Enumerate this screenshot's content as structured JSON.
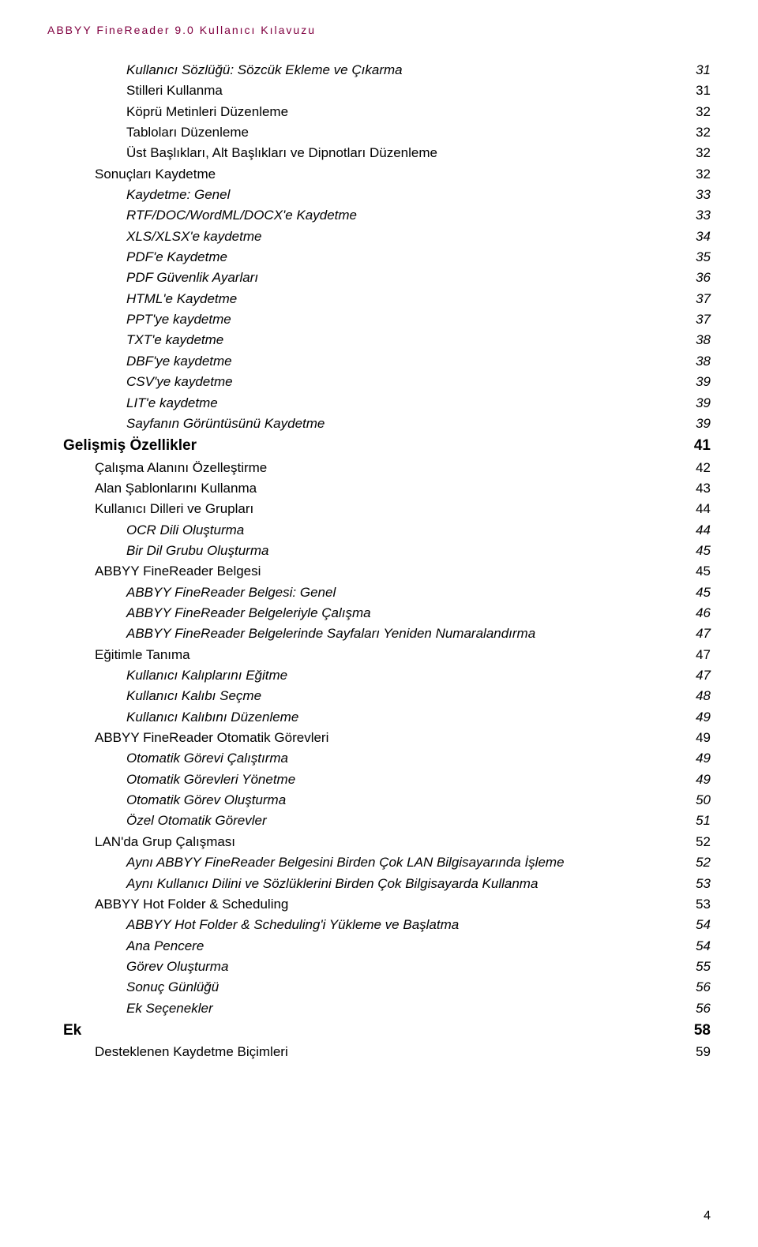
{
  "header_title": "ABBYY FineReader 9.0 Kullanıcı Kılavuzu",
  "header_color": "#800040",
  "page_number": "4",
  "text_color": "#000000",
  "background_color": "#ffffff",
  "toc": [
    {
      "label": "Kullanıcı Sözlüğü: Sözcük Ekleme ve Çıkarma",
      "page": "31",
      "level": "l3"
    },
    {
      "label": "Stilleri Kullanma",
      "page": "31",
      "level": "l2"
    },
    {
      "label": "Köprü Metinleri Düzenleme",
      "page": "32",
      "level": "l2"
    },
    {
      "label": "Tabloları Düzenleme",
      "page": "32",
      "level": "l2"
    },
    {
      "label": "Üst Başlıkları, Alt Başlıkları ve Dipnotları Düzenleme",
      "page": "32",
      "level": "l2"
    },
    {
      "label": "Sonuçları Kaydetme",
      "page": "32",
      "level": "l1"
    },
    {
      "label": "Kaydetme: Genel",
      "page": "33",
      "level": "l3"
    },
    {
      "label": "RTF/DOC/WordML/DOCX'e Kaydetme",
      "page": "33",
      "level": "l3"
    },
    {
      "label": "XLS/XLSX'e kaydetme",
      "page": "34",
      "level": "l3"
    },
    {
      "label": "PDF'e Kaydetme",
      "page": "35",
      "level": "l3"
    },
    {
      "label": "PDF Güvenlik Ayarları",
      "page": "36",
      "level": "l3"
    },
    {
      "label": "HTML'e Kaydetme",
      "page": "37",
      "level": "l3"
    },
    {
      "label": "PPT'ye kaydetme",
      "page": "37",
      "level": "l3"
    },
    {
      "label": "TXT'e kaydetme",
      "page": "38",
      "level": "l3"
    },
    {
      "label": "DBF'ye kaydetme",
      "page": "38",
      "level": "l3"
    },
    {
      "label": "CSV'ye kaydetme",
      "page": "39",
      "level": "l3"
    },
    {
      "label": "LIT'e kaydetme",
      "page": "39",
      "level": "l3"
    },
    {
      "label": "Sayfanın Görüntüsünü Kaydetme",
      "page": "39",
      "level": "l3"
    },
    {
      "label": "Gelişmiş Özellikler",
      "page": "41",
      "level": "l0"
    },
    {
      "label": "Çalışma Alanını Özelleştirme",
      "page": "42",
      "level": "l1"
    },
    {
      "label": "Alan Şablonlarını Kullanma",
      "page": "43",
      "level": "l1"
    },
    {
      "label": "Kullanıcı Dilleri ve Grupları",
      "page": "44",
      "level": "l1"
    },
    {
      "label": "OCR Dili Oluşturma",
      "page": "44",
      "level": "l3"
    },
    {
      "label": "Bir Dil Grubu Oluşturma",
      "page": "45",
      "level": "l3"
    },
    {
      "label": "ABBYY FineReader Belgesi",
      "page": "45",
      "level": "l1"
    },
    {
      "label": "ABBYY FineReader Belgesi: Genel",
      "page": "45",
      "level": "l3"
    },
    {
      "label": "ABBYY FineReader Belgeleriyle Çalışma",
      "page": "46",
      "level": "l3"
    },
    {
      "label": "ABBYY FineReader Belgelerinde Sayfaları Yeniden Numaralandırma",
      "page": "47",
      "level": "l3"
    },
    {
      "label": "Eğitimle Tanıma",
      "page": "47",
      "level": "l1"
    },
    {
      "label": "Kullanıcı Kalıplarını Eğitme",
      "page": "47",
      "level": "l3"
    },
    {
      "label": "Kullanıcı Kalıbı Seçme",
      "page": "48",
      "level": "l3"
    },
    {
      "label": "Kullanıcı Kalıbını Düzenleme",
      "page": "49",
      "level": "l3"
    },
    {
      "label": "ABBYY FineReader Otomatik Görevleri",
      "page": "49",
      "level": "l1"
    },
    {
      "label": "Otomatik Görevi Çalıştırma",
      "page": "49",
      "level": "l3"
    },
    {
      "label": "Otomatik Görevleri Yönetme",
      "page": "49",
      "level": "l3"
    },
    {
      "label": "Otomatik Görev Oluşturma",
      "page": "50",
      "level": "l3"
    },
    {
      "label": "Özel Otomatik Görevler",
      "page": "51",
      "level": "l3"
    },
    {
      "label": "LAN'da Grup Çalışması",
      "page": "52",
      "level": "l1"
    },
    {
      "label": "Aynı ABBYY FineReader Belgesini Birden Çok LAN Bilgisayarında İşleme",
      "page": "52",
      "level": "l3"
    },
    {
      "label": "Aynı Kullanıcı Dilini ve Sözlüklerini Birden Çok Bilgisayarda Kullanma",
      "page": "53",
      "level": "l3"
    },
    {
      "label": "ABBYY Hot Folder & Scheduling",
      "page": "53",
      "level": "l1"
    },
    {
      "label": "ABBYY Hot Folder & Scheduling'i Yükleme ve Başlatma",
      "page": "54",
      "level": "l3"
    },
    {
      "label": "Ana Pencere",
      "page": "54",
      "level": "l3"
    },
    {
      "label": "Görev Oluşturma",
      "page": "55",
      "level": "l3"
    },
    {
      "label": "Sonuç Günlüğü",
      "page": "56",
      "level": "l3"
    },
    {
      "label": "Ek Seçenekler",
      "page": "56",
      "level": "l3"
    },
    {
      "label": "Ek",
      "page": "58",
      "level": "l0"
    },
    {
      "label": "Desteklenen Kaydetme Biçimleri",
      "page": "59",
      "level": "l1"
    }
  ]
}
